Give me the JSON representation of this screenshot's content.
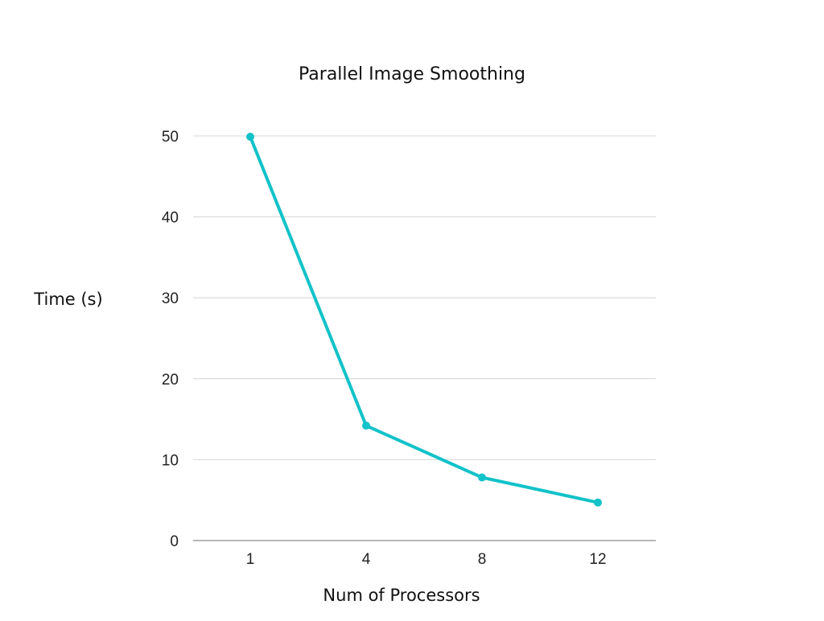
{
  "chart_data": {
    "type": "line",
    "title": "Parallel Image Smoothing",
    "xlabel": "Num of Processors",
    "ylabel": "Time (s)",
    "categories": [
      "1",
      "4",
      "8",
      "12"
    ],
    "series": [
      {
        "values": [
          49.9,
          14.2,
          7.8,
          4.7
        ],
        "color": "#12c2c9"
      }
    ],
    "ylim": [
      0,
      50
    ],
    "yticks": [
      0,
      10,
      20,
      30,
      40,
      50
    ],
    "grid": true,
    "legend": "none"
  }
}
